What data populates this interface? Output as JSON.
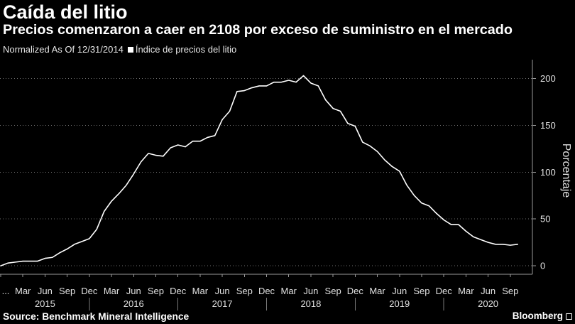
{
  "colors": {
    "background": "#000000",
    "text": "#ffffff"
  },
  "chart_data": {
    "type": "line",
    "title": "Caída del litio",
    "subtitle": "Precios comenzaron a caer en 2108 por exceso de suministro en el mercado",
    "note": "Normalized As Of 12/31/2014",
    "ylabel": "Porcentaje",
    "y_axis_side": "right",
    "grid": "horizontal",
    "legend_position": "top-left",
    "xlim": [
      "2014-12",
      "2020-12"
    ],
    "ylim": [
      -9,
      220
    ],
    "y_ticks": [
      0,
      50,
      100,
      150,
      200
    ],
    "x_tick_labels": [
      {
        "label": "...",
        "date": "2014-12"
      },
      {
        "label": "Mar",
        "date": "2015-03"
      },
      {
        "label": "Jun",
        "date": "2015-06"
      },
      {
        "label": "Sep",
        "date": "2015-09"
      },
      {
        "label": "Dec",
        "date": "2015-12"
      },
      {
        "label": "Mar",
        "date": "2016-03"
      },
      {
        "label": "Jun",
        "date": "2016-06"
      },
      {
        "label": "Sep",
        "date": "2016-09"
      },
      {
        "label": "Dec",
        "date": "2016-12"
      },
      {
        "label": "Mar",
        "date": "2017-03"
      },
      {
        "label": "Jun",
        "date": "2017-06"
      },
      {
        "label": "Sep",
        "date": "2017-09"
      },
      {
        "label": "Dec",
        "date": "2017-12"
      },
      {
        "label": "Mar",
        "date": "2018-03"
      },
      {
        "label": "Jun",
        "date": "2018-06"
      },
      {
        "label": "Sep",
        "date": "2018-09"
      },
      {
        "label": "Dec",
        "date": "2018-12"
      },
      {
        "label": "Mar",
        "date": "2019-03"
      },
      {
        "label": "Jun",
        "date": "2019-06"
      },
      {
        "label": "Sep",
        "date": "2019-09"
      },
      {
        "label": "Dec",
        "date": "2019-12"
      },
      {
        "label": "Mar",
        "date": "2020-03"
      },
      {
        "label": "Jun",
        "date": "2020-06"
      },
      {
        "label": "Sep",
        "date": "2020-09"
      }
    ],
    "year_labels": [
      "2015",
      "2016",
      "2017",
      "2018",
      "2019",
      "2020"
    ],
    "x": [
      "2014-12",
      "2015-01",
      "2015-02",
      "2015-03",
      "2015-04",
      "2015-05",
      "2015-06",
      "2015-07",
      "2015-08",
      "2015-09",
      "2015-10",
      "2015-11",
      "2015-12",
      "2016-01",
      "2016-02",
      "2016-03",
      "2016-04",
      "2016-05",
      "2016-06",
      "2016-07",
      "2016-08",
      "2016-09",
      "2016-10",
      "2016-11",
      "2016-12",
      "2017-01",
      "2017-02",
      "2017-03",
      "2017-04",
      "2017-05",
      "2017-06",
      "2017-07",
      "2017-08",
      "2017-09",
      "2017-10",
      "2017-11",
      "2017-12",
      "2018-01",
      "2018-02",
      "2018-03",
      "2018-04",
      "2018-05",
      "2018-06",
      "2018-07",
      "2018-08",
      "2018-09",
      "2018-10",
      "2018-11",
      "2018-12",
      "2019-01",
      "2019-02",
      "2019-03",
      "2019-04",
      "2019-05",
      "2019-06",
      "2019-07",
      "2019-08",
      "2019-09",
      "2019-10",
      "2019-11",
      "2019-12",
      "2020-01",
      "2020-02",
      "2020-03",
      "2020-04",
      "2020-05",
      "2020-06",
      "2020-07",
      "2020-08",
      "2020-09",
      "2020-10"
    ],
    "series": [
      {
        "name": "Índice de precios del litio",
        "color": "#ffffff",
        "values": [
          0,
          3,
          4,
          5,
          5,
          5,
          8,
          9,
          14,
          18,
          23,
          26,
          29,
          39,
          58,
          69,
          77,
          86,
          98,
          111,
          120,
          118,
          117,
          126,
          129,
          127,
          133,
          133,
          137,
          139,
          156,
          165,
          186,
          187,
          190,
          192,
          192,
          196,
          196,
          198,
          196,
          203,
          195,
          192,
          177,
          168,
          165,
          152,
          149,
          132,
          128,
          122,
          113,
          106,
          101,
          86,
          75,
          67,
          64,
          56,
          49,
          44,
          44,
          37,
          31,
          28,
          25,
          23,
          23,
          22,
          23
        ]
      }
    ]
  },
  "footer": {
    "source": "Source: Benchmark Mineral Intelligence",
    "brand": "Bloomberg",
    "logo_icon": "bloomberg-logo-icon"
  }
}
